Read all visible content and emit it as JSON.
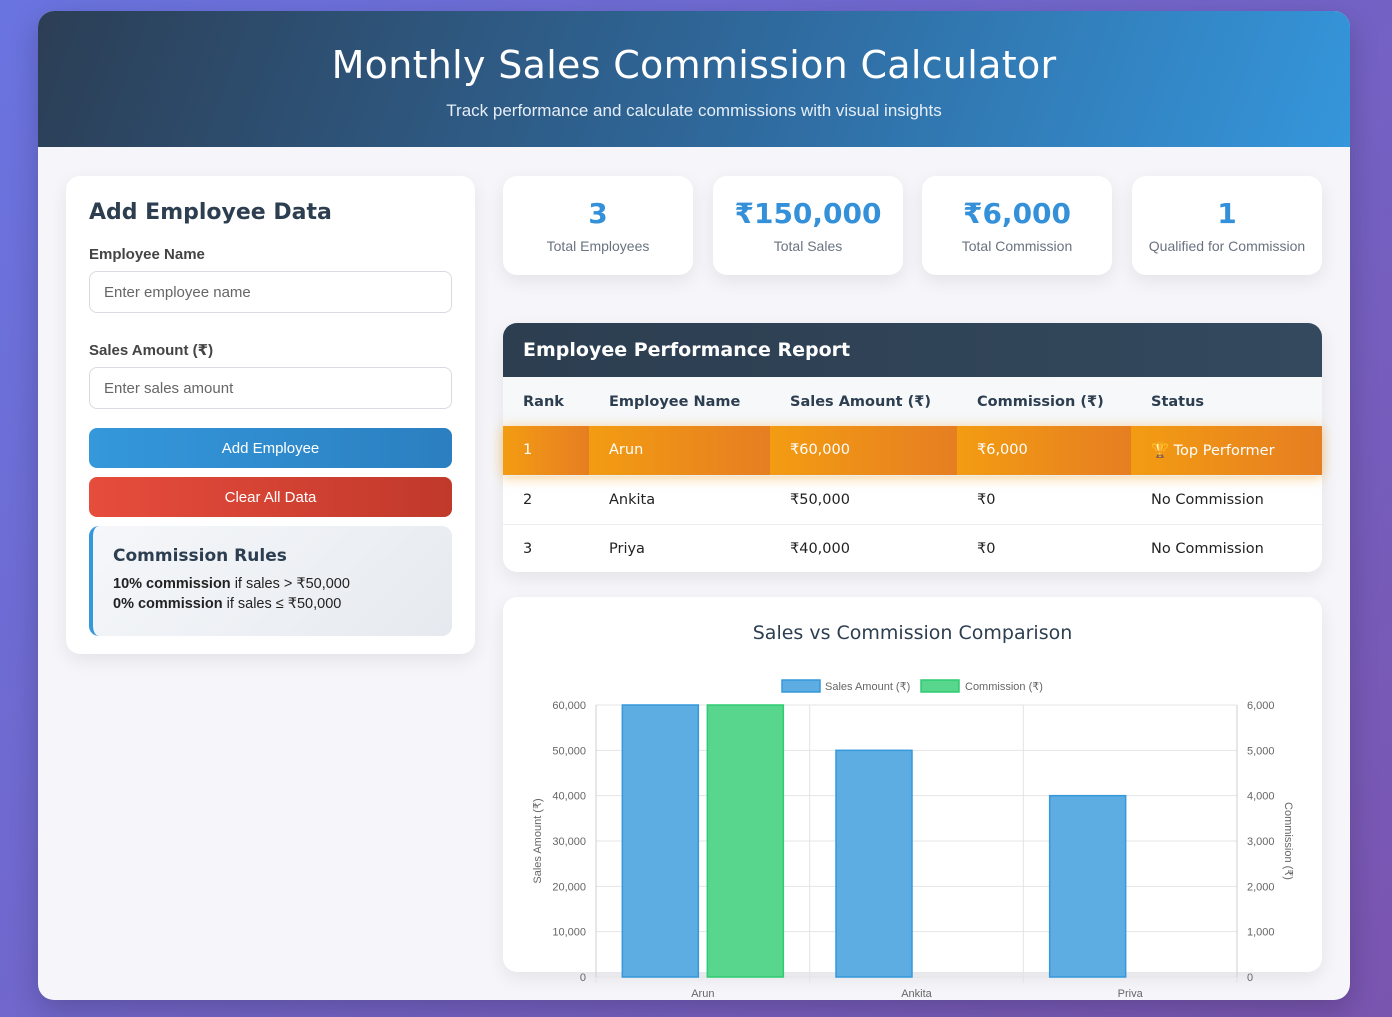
{
  "header": {
    "title": "Monthly Sales Commission Calculator",
    "subtitle": "Track performance and calculate commissions with visual insights"
  },
  "form": {
    "title": "Add Employee Data",
    "name_label": "Employee Name",
    "name_placeholder": "Enter employee name",
    "name_value": "",
    "sales_label": "Sales Amount (₹)",
    "sales_placeholder": "Enter sales amount",
    "sales_value": "",
    "add_button": "Add Employee",
    "clear_button": "Clear All Data"
  },
  "rules": {
    "title": "Commission Rules",
    "rule1_bold": "10% commission",
    "rule1_text": " if sales > ₹50,000",
    "rule2_bold": "0% commission",
    "rule2_text": " if sales ≤ ₹50,000"
  },
  "stats": [
    {
      "value": "3",
      "label": "Total Employees"
    },
    {
      "value": "₹150,000",
      "label": "Total Sales"
    },
    {
      "value": "₹6,000",
      "label": "Total Commission"
    },
    {
      "value": "1",
      "label": "Qualified for Commission"
    }
  ],
  "report": {
    "title": "Employee Performance Report",
    "columns": [
      "Rank",
      "Employee Name",
      "Sales Amount (₹)",
      "Commission (₹)",
      "Status"
    ],
    "rows": [
      {
        "rank": "1",
        "name": "Arun",
        "sales": "₹60,000",
        "commission": "₹6,000",
        "status": "🏆 Top Performer"
      },
      {
        "rank": "2",
        "name": "Ankita",
        "sales": "₹50,000",
        "commission": "₹0",
        "status": "No Commission"
      },
      {
        "rank": "3",
        "name": "Priya",
        "sales": "₹40,000",
        "commission": "₹0",
        "status": "No Commission"
      }
    ]
  },
  "colors": {
    "sales": "#5dade2",
    "sales_border": "#3498db",
    "commission": "#58d68d",
    "commission_border": "#2ecc71"
  },
  "chart_data": {
    "type": "bar",
    "title": "Sales vs Commission Comparison",
    "categories": [
      "Arun",
      "Ankita",
      "Priya"
    ],
    "series": [
      {
        "name": "Sales Amount (₹)",
        "values": [
          60000,
          50000,
          40000
        ],
        "axis": "left"
      },
      {
        "name": "Commission (₹)",
        "values": [
          6000,
          0,
          0
        ],
        "axis": "right"
      }
    ],
    "ylabel": "Sales Amount (₹)",
    "y2label": "Commission (₹)",
    "ylim": [
      0,
      60000
    ],
    "y2lim": [
      0,
      6000
    ],
    "yticks": [
      "0",
      "10,000",
      "20,000",
      "30,000",
      "40,000",
      "50,000",
      "60,000"
    ],
    "y2ticks": [
      "0",
      "1,000",
      "2,000",
      "3,000",
      "4,000",
      "5,000",
      "6,000"
    ],
    "legend": "top",
    "grid": true
  }
}
